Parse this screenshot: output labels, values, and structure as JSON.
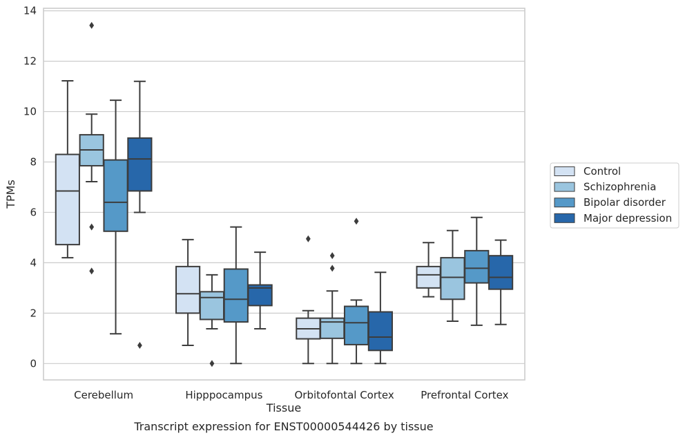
{
  "chart_data": {
    "type": "boxplot",
    "xlabel": "Tissue",
    "ylabel": "TPMs",
    "caption": "Transcript expression for ENST00000544426 by tissue",
    "ylim": [
      -0.65,
      14.1
    ],
    "yticks": [
      0,
      2,
      4,
      6,
      8,
      10,
      12,
      14
    ],
    "grid": "horizontal",
    "legend_position": "right",
    "categories": [
      "Cerebellum",
      "Hipppocampus",
      "Orbitofontal Cortex",
      "Prefrontal Cortex"
    ],
    "series": [
      {
        "name": "Control",
        "color": "#d3e2f3",
        "boxes": [
          {
            "whislo": 4.2,
            "q1": 4.72,
            "med": 6.85,
            "q3": 8.3,
            "whishi": 11.22,
            "fliers": []
          },
          {
            "whislo": 0.72,
            "q1": 2.0,
            "med": 2.77,
            "q3": 3.85,
            "whishi": 4.92,
            "fliers": []
          },
          {
            "whislo": 0.0,
            "q1": 0.98,
            "med": 1.38,
            "q3": 1.8,
            "whishi": 2.1,
            "fliers": [
              4.95
            ]
          },
          {
            "whislo": 2.65,
            "q1": 3.0,
            "med": 3.52,
            "q3": 3.85,
            "whishi": 4.8,
            "fliers": []
          }
        ]
      },
      {
        "name": "Schizophrenia",
        "color": "#9ac5df",
        "boxes": [
          {
            "whislo": 7.22,
            "q1": 7.85,
            "med": 8.48,
            "q3": 9.08,
            "whishi": 9.9,
            "fliers": [
              13.42,
              5.42,
              3.67
            ]
          },
          {
            "whislo": 1.38,
            "q1": 1.75,
            "med": 2.62,
            "q3": 2.85,
            "whishi": 3.52,
            "fliers": [
              0.0
            ]
          },
          {
            "whislo": 0.0,
            "q1": 1.0,
            "med": 1.65,
            "q3": 1.8,
            "whishi": 2.88,
            "fliers": [
              4.28,
              3.78
            ]
          },
          {
            "whislo": 1.68,
            "q1": 2.55,
            "med": 3.42,
            "q3": 4.2,
            "whishi": 5.28,
            "fliers": []
          }
        ]
      },
      {
        "name": "Bipolar disorder",
        "color": "#5599c8",
        "boxes": [
          {
            "whislo": 1.18,
            "q1": 5.25,
            "med": 6.4,
            "q3": 8.08,
            "whishi": 10.45,
            "fliers": []
          },
          {
            "whislo": 0.0,
            "q1": 1.65,
            "med": 2.55,
            "q3": 3.75,
            "whishi": 5.42,
            "fliers": []
          },
          {
            "whislo": 0.0,
            "q1": 0.75,
            "med": 1.62,
            "q3": 2.27,
            "whishi": 2.52,
            "fliers": [
              5.65
            ]
          },
          {
            "whislo": 1.52,
            "q1": 3.2,
            "med": 3.78,
            "q3": 4.48,
            "whishi": 5.8,
            "fliers": []
          }
        ]
      },
      {
        "name": "Major depression",
        "color": "#2767aa",
        "boxes": [
          {
            "whislo": 6.0,
            "q1": 6.85,
            "med": 8.12,
            "q3": 8.95,
            "whishi": 11.2,
            "fliers": [
              0.72
            ]
          },
          {
            "whislo": 1.38,
            "q1": 2.3,
            "med": 3.0,
            "q3": 3.12,
            "whishi": 4.42,
            "fliers": []
          },
          {
            "whislo": 0.0,
            "q1": 0.52,
            "med": 1.05,
            "q3": 2.05,
            "whishi": 3.62,
            "fliers": []
          },
          {
            "whislo": 1.55,
            "q1": 2.95,
            "med": 3.42,
            "q3": 4.28,
            "whishi": 4.9,
            "fliers": []
          }
        ]
      }
    ]
  }
}
